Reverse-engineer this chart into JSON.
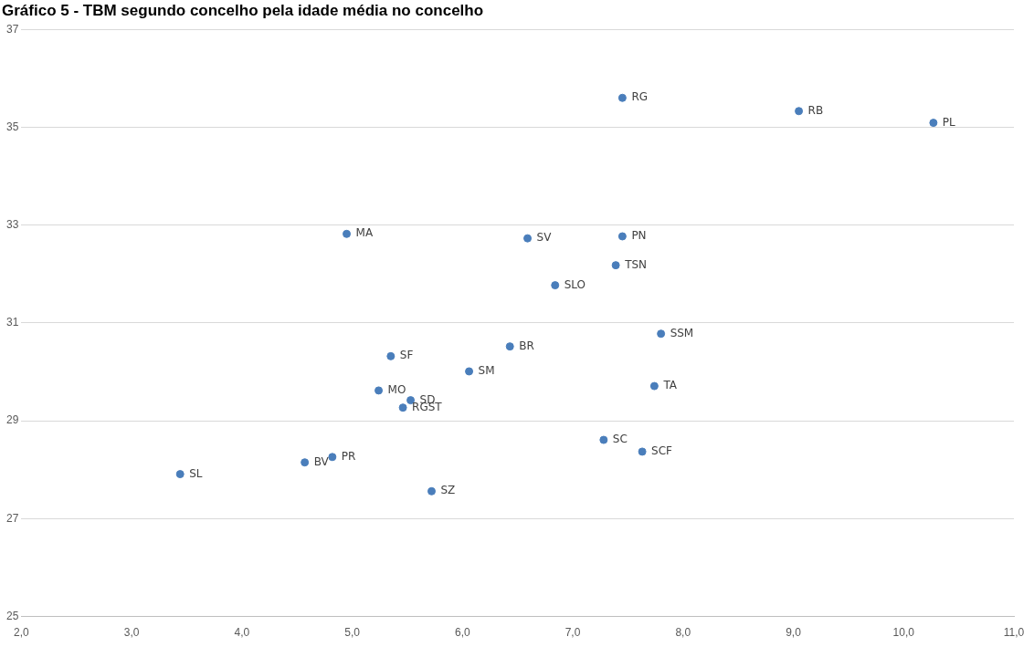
{
  "chart_data": {
    "type": "scatter",
    "title": "Gráfico 5 - TBM segundo concelho pela idade média no concelho",
    "xlim": [
      2,
      11
    ],
    "xticks": [
      {
        "value": 2,
        "label": "2,0"
      },
      {
        "value": 3,
        "label": "3,0"
      },
      {
        "value": 4,
        "label": "4,0"
      },
      {
        "value": 5,
        "label": "5,0"
      },
      {
        "value": 6,
        "label": "6,0"
      },
      {
        "value": 7,
        "label": "7,0"
      },
      {
        "value": 8,
        "label": "8,0"
      },
      {
        "value": 9,
        "label": "9,0"
      },
      {
        "value": 10,
        "label": "10,0"
      },
      {
        "value": 11,
        "label": "11,0"
      }
    ],
    "ylim": [
      25,
      37
    ],
    "yticks": [
      25,
      27,
      29,
      31,
      33,
      35,
      37
    ],
    "grid": "y",
    "legend": false,
    "marker": "circle",
    "series": [
      {
        "name": "SL",
        "color": "#4a7ebb",
        "x": [
          3.44
        ],
        "values": [
          27.91
        ]
      },
      {
        "name": "BV",
        "color": "#4a7ebb",
        "x": [
          4.57
        ],
        "values": [
          28.15
        ]
      },
      {
        "name": "PR",
        "color": "#4a7ebb",
        "x": [
          4.82
        ],
        "values": [
          28.26
        ]
      },
      {
        "name": "SZ",
        "color": "#4a7ebb",
        "x": [
          5.72
        ],
        "values": [
          27.56
        ]
      },
      {
        "name": "RGST",
        "color": "#4a7ebb",
        "x": [
          5.46
        ],
        "values": [
          29.27
        ]
      },
      {
        "name": "SD",
        "color": "#4a7ebb",
        "x": [
          5.53
        ],
        "values": [
          29.42
        ]
      },
      {
        "name": "MO",
        "color": "#4a7ebb",
        "x": [
          5.24
        ],
        "values": [
          29.62
        ]
      },
      {
        "name": "SF",
        "color": "#4a7ebb",
        "x": [
          5.35
        ],
        "values": [
          30.32
        ]
      },
      {
        "name": "SM",
        "color": "#4a7ebb",
        "x": [
          6.06
        ],
        "values": [
          30.01
        ]
      },
      {
        "name": "BR",
        "color": "#4a7ebb",
        "x": [
          6.43
        ],
        "values": [
          30.52
        ]
      },
      {
        "name": "SLO",
        "color": "#4a7ebb",
        "x": [
          6.84
        ],
        "values": [
          31.77
        ]
      },
      {
        "name": "SV",
        "color": "#4a7ebb",
        "x": [
          6.59
        ],
        "values": [
          32.73
        ]
      },
      {
        "name": "MA",
        "color": "#4a7ebb",
        "x": [
          4.95
        ],
        "values": [
          32.82
        ]
      },
      {
        "name": "PN",
        "color": "#4a7ebb",
        "x": [
          7.45
        ],
        "values": [
          32.77
        ]
      },
      {
        "name": "TSN",
        "color": "#4a7ebb",
        "x": [
          7.39
        ],
        "values": [
          32.18
        ]
      },
      {
        "name": "SSM",
        "color": "#4a7ebb",
        "x": [
          7.8
        ],
        "values": [
          30.78
        ]
      },
      {
        "name": "TA",
        "color": "#4a7ebb",
        "x": [
          7.74
        ],
        "values": [
          29.71
        ]
      },
      {
        "name": "SC",
        "color": "#4a7ebb",
        "x": [
          7.28
        ],
        "values": [
          28.61
        ]
      },
      {
        "name": "SCF",
        "color": "#4a7ebb",
        "x": [
          7.63
        ],
        "values": [
          28.37
        ]
      },
      {
        "name": "RG",
        "color": "#4a7ebb",
        "x": [
          7.45
        ],
        "values": [
          35.6
        ]
      },
      {
        "name": "RB",
        "color": "#4a7ebb",
        "x": [
          9.05
        ],
        "values": [
          35.33
        ]
      },
      {
        "name": "PL",
        "color": "#4a7ebb",
        "x": [
          10.27
        ],
        "values": [
          35.09
        ]
      }
    ]
  }
}
